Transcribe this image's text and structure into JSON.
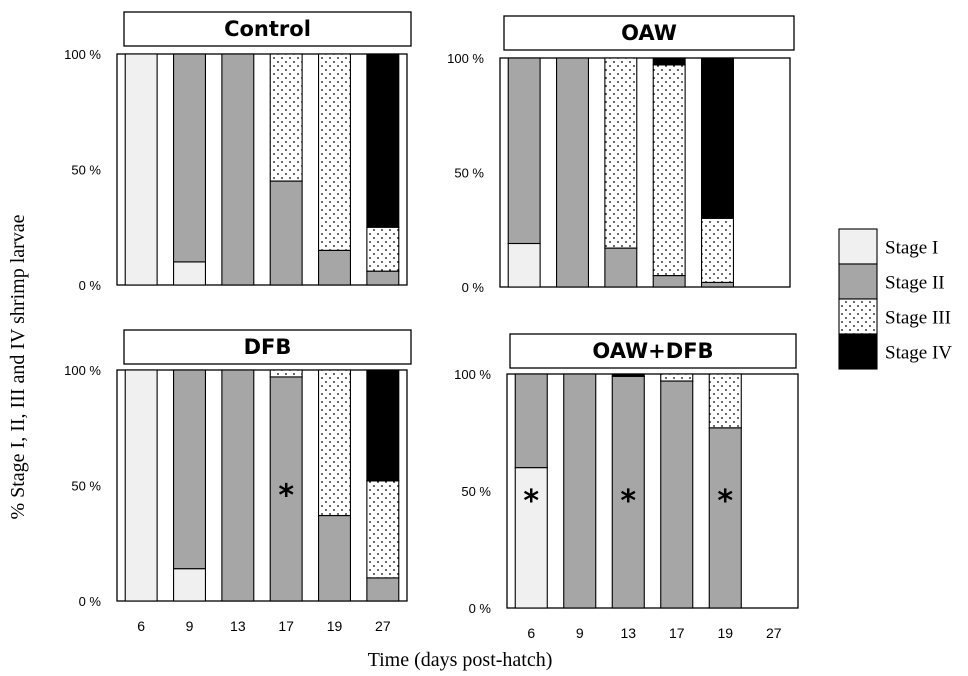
{
  "chart_data": {
    "type": "bar",
    "stacked": true,
    "ylabel": "% Stage I, II, III and IV shrimp larvae",
    "xlabel": "Time (days post-hatch)",
    "y_ticks": [
      "0 %",
      "50 %",
      "100 %"
    ],
    "ylim": [
      0,
      100
    ],
    "categories": [
      "6",
      "9",
      "13",
      "17",
      "19",
      "27"
    ],
    "legend": {
      "position": "right",
      "entries": [
        {
          "label": "Stage I",
          "key": "s1",
          "color": "#f0f0f0"
        },
        {
          "label": "Stage II",
          "key": "s2",
          "color": "#a6a6a6"
        },
        {
          "label": "Stage III",
          "key": "s3",
          "color": "#ffffff",
          "pattern": "dots"
        },
        {
          "label": "Stage IV",
          "key": "s4",
          "color": "#000000"
        }
      ]
    },
    "panels": [
      {
        "title": "Control",
        "bars": [
          {
            "day": "6",
            "s1": 100,
            "s2": 0,
            "s3": 0,
            "s4": 0
          },
          {
            "day": "9",
            "s1": 10,
            "s2": 90,
            "s3": 0,
            "s4": 0
          },
          {
            "day": "13",
            "s1": 0,
            "s2": 100,
            "s3": 0,
            "s4": 0
          },
          {
            "day": "17",
            "s1": 0,
            "s2": 45,
            "s3": 55,
            "s4": 0
          },
          {
            "day": "19",
            "s1": 0,
            "s2": 15,
            "s3": 85,
            "s4": 0
          },
          {
            "day": "27",
            "s1": 0,
            "s2": 6,
            "s3": 19,
            "s4": 75
          }
        ],
        "significant": []
      },
      {
        "title": "OAW",
        "bars": [
          {
            "day": "6",
            "s1": 19,
            "s2": 81,
            "s3": 0,
            "s4": 0
          },
          {
            "day": "9",
            "s1": 0,
            "s2": 100,
            "s3": 0,
            "s4": 0
          },
          {
            "day": "13",
            "s1": 0,
            "s2": 17,
            "s3": 83,
            "s4": 0
          },
          {
            "day": "17",
            "s1": 0,
            "s2": 5,
            "s3": 92,
            "s4": 3
          },
          {
            "day": "19",
            "s1": 0,
            "s2": 2,
            "s3": 28,
            "s4": 70
          },
          {
            "day": "27",
            "empty": true
          }
        ],
        "significant": []
      },
      {
        "title": "DFB",
        "bars": [
          {
            "day": "6",
            "s1": 100,
            "s2": 0,
            "s3": 0,
            "s4": 0
          },
          {
            "day": "9",
            "s1": 14,
            "s2": 86,
            "s3": 0,
            "s4": 0
          },
          {
            "day": "13",
            "s1": 0,
            "s2": 100,
            "s3": 0,
            "s4": 0
          },
          {
            "day": "17",
            "s1": 0,
            "s2": 97,
            "s3": 3,
            "s4": 0
          },
          {
            "day": "19",
            "s1": 0,
            "s2": 37,
            "s3": 63,
            "s4": 0
          },
          {
            "day": "27",
            "s1": 0,
            "s2": 10,
            "s3": 42,
            "s4": 48
          }
        ],
        "significant": [
          "17"
        ]
      },
      {
        "title": "OAW+DFB",
        "bars": [
          {
            "day": "6",
            "s1": 60,
            "s2": 40,
            "s3": 0,
            "s4": 0
          },
          {
            "day": "9",
            "s1": 0,
            "s2": 100,
            "s3": 0,
            "s4": 0
          },
          {
            "day": "13",
            "s1": 0,
            "s2": 99,
            "s3": 0,
            "s4": 1
          },
          {
            "day": "17",
            "s1": 0,
            "s2": 97,
            "s3": 3,
            "s4": 0
          },
          {
            "day": "19",
            "s1": 0,
            "s2": 77,
            "s3": 23,
            "s4": 0
          },
          {
            "day": "27",
            "empty": true
          }
        ],
        "significant": [
          "6",
          "13",
          "19"
        ]
      }
    ],
    "significance_marker": "*"
  }
}
